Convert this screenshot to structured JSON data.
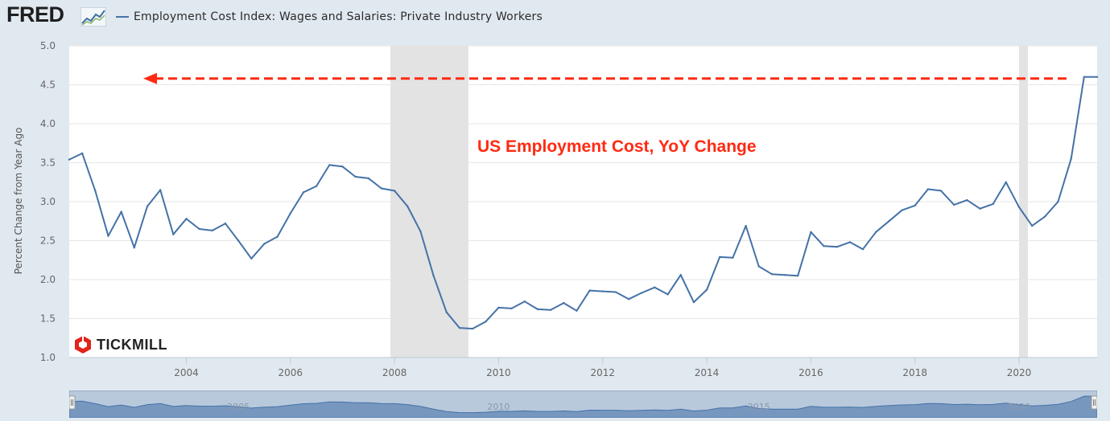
{
  "header": {
    "logo_text": "FRED",
    "series_title": "Employment Cost Index: Wages and Salaries: Private Industry Workers"
  },
  "watermark": {
    "text": "TICKMILL"
  },
  "colors": {
    "line": "#4572a7",
    "recession": "#e3e3e3",
    "annotation": "#ff2a12",
    "background": "#e1e9f0"
  },
  "chart_data": {
    "type": "line",
    "title": "US Employment Cost, YoY Change",
    "ylabel": "Percent Change from Year Ago",
    "xlabel": "",
    "xlim": [
      2001.75,
      2021.5
    ],
    "ylim": [
      1.0,
      5.0
    ],
    "yticks": [
      1.0,
      1.5,
      2.0,
      2.5,
      3.0,
      3.5,
      4.0,
      4.5,
      5.0
    ],
    "ytick_labels": [
      "1.0",
      "1.5",
      "2.0",
      "2.5",
      "3.0",
      "3.5",
      "4.0",
      "4.5",
      "5.0"
    ],
    "xticks": [
      2004,
      2006,
      2008,
      2010,
      2012,
      2014,
      2016,
      2018,
      2020
    ],
    "xtick_labels": [
      "2004",
      "2006",
      "2008",
      "2010",
      "2012",
      "2014",
      "2016",
      "2018",
      "2020"
    ],
    "grid": true,
    "recessions": [
      [
        2007.92,
        2009.42
      ],
      [
        2020.0,
        2020.17
      ]
    ],
    "reference_line": {
      "y": 4.58,
      "style": "dashed-arrow-left"
    },
    "navigator_labels": [
      "2005",
      "2010",
      "2015",
      "2020"
    ],
    "series": [
      {
        "x": [
          2001.75,
          2002.0,
          2002.25,
          2002.5,
          2002.75,
          2003.0,
          2003.25,
          2003.5,
          2003.75,
          2004.0,
          2004.25,
          2004.5,
          2004.75,
          2005.0,
          2005.25,
          2005.5,
          2005.75,
          2006.0,
          2006.25,
          2006.5,
          2006.75,
          2007.0,
          2007.25,
          2007.5,
          2007.75,
          2008.0,
          2008.25,
          2008.5,
          2008.75,
          2009.0,
          2009.25,
          2009.5,
          2009.75,
          2010.0,
          2010.25,
          2010.5,
          2010.75,
          2011.0,
          2011.25,
          2011.5,
          2011.75,
          2012.0,
          2012.25,
          2012.5,
          2012.75,
          2013.0,
          2013.25,
          2013.5,
          2013.75,
          2014.0,
          2014.25,
          2014.5,
          2014.75,
          2015.0,
          2015.25,
          2015.5,
          2015.75,
          2016.0,
          2016.25,
          2016.5,
          2016.75,
          2017.0,
          2017.25,
          2017.5,
          2017.75,
          2018.0,
          2018.25,
          2018.5,
          2018.75,
          2019.0,
          2019.25,
          2019.5,
          2019.75,
          2020.0,
          2020.25,
          2020.5,
          2020.75,
          2021.0,
          2021.25,
          2021.5
        ],
        "values": [
          3.54,
          3.62,
          3.14,
          2.56,
          2.87,
          2.41,
          2.94,
          3.15,
          2.58,
          2.78,
          2.65,
          2.63,
          2.72,
          2.5,
          2.27,
          2.46,
          2.55,
          2.85,
          3.12,
          3.2,
          3.47,
          3.45,
          3.32,
          3.3,
          3.17,
          3.14,
          2.94,
          2.62,
          2.05,
          1.58,
          1.38,
          1.37,
          1.46,
          1.64,
          1.63,
          1.72,
          1.62,
          1.61,
          1.7,
          1.6,
          1.86,
          1.85,
          1.84,
          1.75,
          1.83,
          1.9,
          1.81,
          2.06,
          1.71,
          1.87,
          2.29,
          2.28,
          2.69,
          2.17,
          2.07,
          2.06,
          2.05,
          2.61,
          2.43,
          2.42,
          2.48,
          2.39,
          2.61,
          2.75,
          2.89,
          2.95,
          3.16,
          3.14,
          2.96,
          3.02,
          2.91,
          2.97,
          3.25,
          2.93,
          2.69,
          2.81,
          3.0,
          3.55,
          4.6,
          4.6
        ]
      }
    ]
  }
}
